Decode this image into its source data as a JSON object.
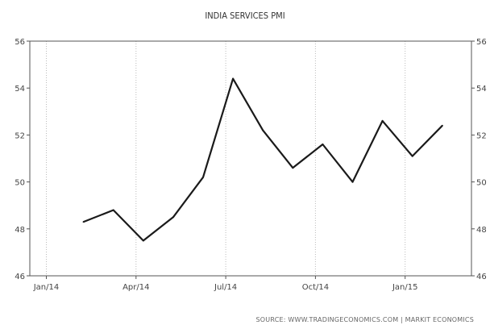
{
  "chart_data": {
    "type": "line",
    "title": "INDIA SERVICES PMI",
    "x": [
      "2014-02",
      "2014-03",
      "2014-04",
      "2014-05",
      "2014-06",
      "2014-07",
      "2014-08",
      "2014-09",
      "2014-10",
      "2014-11",
      "2014-12",
      "2015-01",
      "2015-02"
    ],
    "series": [
      {
        "values": [
          48.3,
          48.8,
          47.5,
          48.5,
          50.2,
          54.4,
          52.2,
          50.6,
          51.6,
          50.0,
          52.6,
          51.1,
          52.4
        ]
      }
    ],
    "x_ticks": [
      "Jan/14",
      "Apr/14",
      "Jul/14",
      "Oct/14",
      "Jan/15"
    ],
    "y_ticks": [
      "46",
      "48",
      "50",
      "52",
      "54",
      "56"
    ],
    "ylim": [
      46,
      56
    ],
    "grid": "vertical dotted at x ticks",
    "line_color": "#1a1a1a",
    "source": "SOURCE: WWW.TRADINGECONOMICS.COM | MARKIT ECONOMICS"
  }
}
